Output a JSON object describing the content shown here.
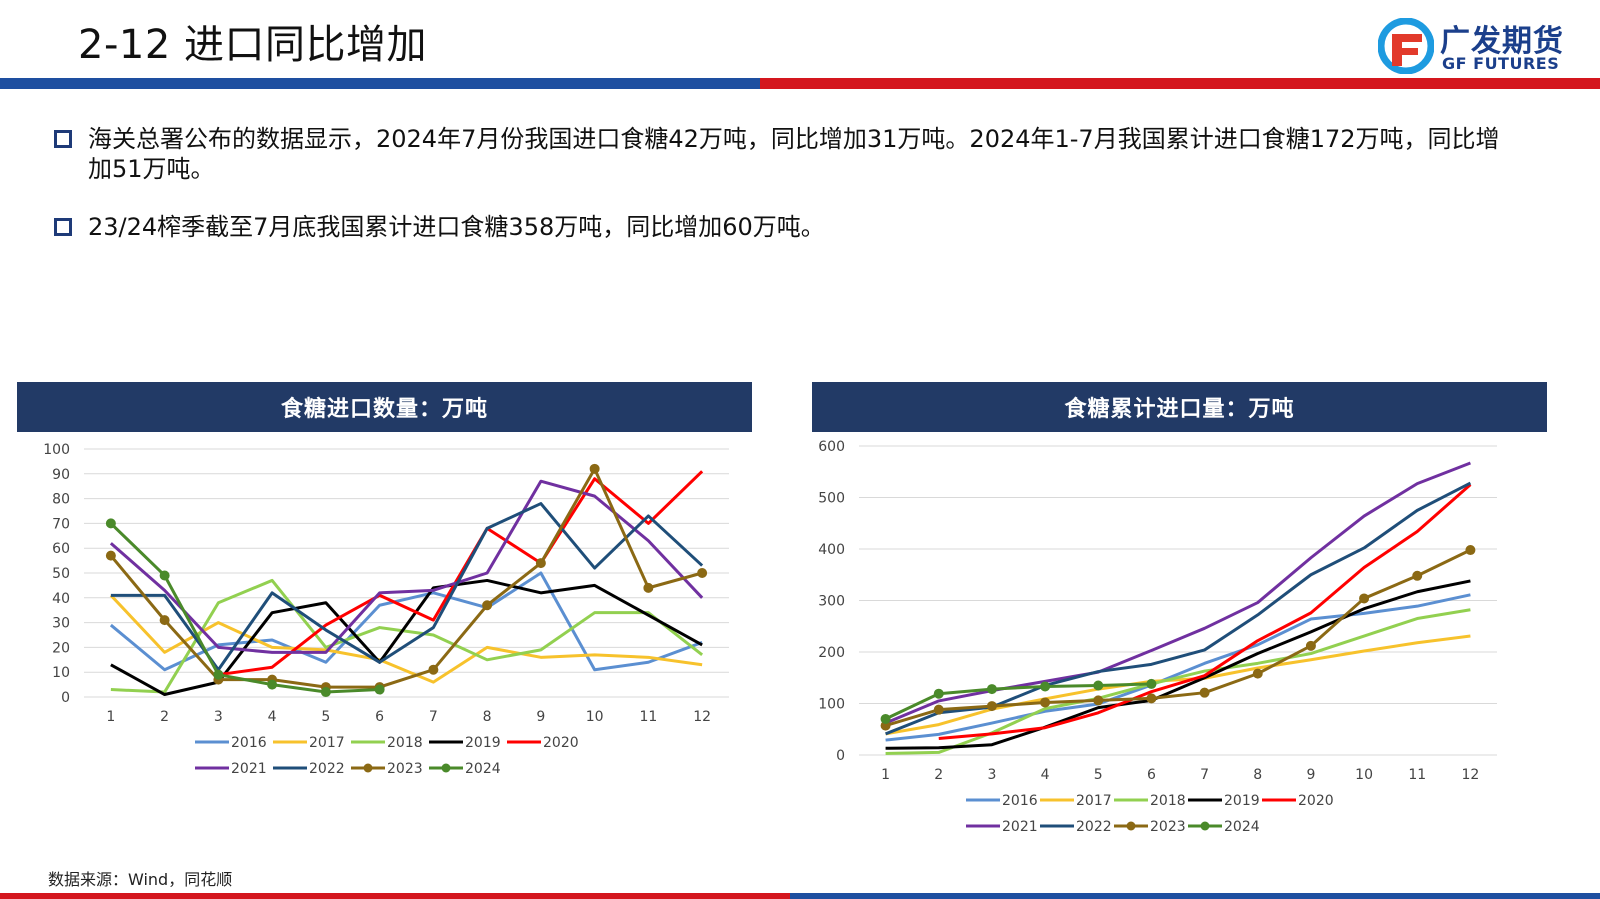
{
  "title": "2-12 进口同比增加",
  "logo": {
    "cn": "广发期货",
    "en": "GF FUTURES"
  },
  "bullets": [
    "海关总署公布的数据显示，2024年7月份我国进口食糖42万吨，同比增加31万吨。2024年1-7月我国累计进口食糖172万吨，同比增加51万吨。",
    "23/24榨季截至7月底我国累计进口食糖358万吨，同比增加60万吨。"
  ],
  "source": "数据来源：Wind，同花顺",
  "colors": {
    "2016": "#5b8fd1",
    "2017": "#f7c22c",
    "2018": "#92d050",
    "2019": "#000000",
    "2020": "#ff0000",
    "2021": "#7030a0",
    "2022": "#1f4e79",
    "2023": "#8b6914",
    "2024": "#4a8a2a"
  },
  "chart_data": [
    {
      "type": "line",
      "title": "食糖进口数量：万吨",
      "categories": [
        "1",
        "2",
        "3",
        "4",
        "5",
        "6",
        "7",
        "8",
        "9",
        "10",
        "11",
        "12"
      ],
      "ylim": [
        0,
        100
      ],
      "yticks": [
        0,
        10,
        20,
        30,
        40,
        50,
        60,
        70,
        80,
        90,
        100
      ],
      "grid": true,
      "legend_position": "bottom",
      "series": [
        {
          "name": "2016",
          "values": [
            29,
            11,
            21,
            23,
            14,
            37,
            42,
            36,
            50,
            11,
            14,
            22
          ],
          "markers": false
        },
        {
          "name": "2017",
          "values": [
            41,
            18,
            30,
            20,
            19,
            15,
            6,
            20,
            16,
            17,
            16,
            13
          ],
          "markers": false
        },
        {
          "name": "2018",
          "values": [
            3,
            2,
            38,
            47,
            20,
            28,
            25,
            15,
            19,
            34,
            34,
            17
          ],
          "markers": false
        },
        {
          "name": "2019",
          "values": [
            13,
            1,
            6,
            34,
            38,
            14,
            44,
            47,
            42,
            45,
            33,
            21
          ],
          "markers": false
        },
        {
          "name": "2020",
          "values": [
            null,
            null,
            9,
            12,
            29,
            41,
            31,
            68,
            54,
            88,
            70,
            91
          ],
          "markers": false
        },
        {
          "name": "2021",
          "values": [
            62,
            43,
            20,
            18,
            18,
            42,
            43,
            50,
            87,
            81,
            63,
            40
          ],
          "markers": false
        },
        {
          "name": "2022",
          "values": [
            41,
            41,
            11,
            42,
            27,
            14,
            28,
            68,
            78,
            52,
            73,
            53
          ],
          "markers": false
        },
        {
          "name": "2023",
          "values": [
            57,
            31,
            7,
            7,
            4,
            4,
            11,
            37,
            54,
            92,
            44,
            50
          ],
          "markers": true
        },
        {
          "name": "2024",
          "values": [
            70,
            49,
            9,
            5,
            2,
            3,
            null,
            null,
            null,
            null,
            null,
            null
          ],
          "markers": true
        }
      ]
    },
    {
      "type": "line",
      "title": "食糖累计进口量：万吨",
      "categories": [
        "1",
        "2",
        "3",
        "4",
        "5",
        "6",
        "7",
        "8",
        "9",
        "10",
        "11",
        "12"
      ],
      "ylim": [
        0,
        600
      ],
      "yticks": [
        0,
        100,
        200,
        300,
        400,
        500,
        600
      ],
      "grid": true,
      "legend_position": "bottom",
      "series": [
        {
          "name": "2016",
          "values": [
            29,
            40,
            62,
            85,
            99,
            136,
            178,
            214,
            264,
            275,
            289,
            311
          ],
          "markers": false
        },
        {
          "name": "2017",
          "values": [
            41,
            59,
            89,
            109,
            128,
            143,
            149,
            169,
            185,
            202,
            218,
            231
          ],
          "markers": false
        },
        {
          "name": "2018",
          "values": [
            3,
            5,
            43,
            90,
            110,
            138,
            163,
            178,
            197,
            231,
            265,
            282
          ],
          "markers": false
        },
        {
          "name": "2019",
          "values": [
            13,
            14,
            20,
            54,
            92,
            106,
            150,
            197,
            239,
            284,
            317,
            338
          ],
          "markers": false
        },
        {
          "name": "2020",
          "values": [
            null,
            32,
            41,
            53,
            82,
            123,
            154,
            222,
            276,
            364,
            434,
            525
          ],
          "markers": false
        },
        {
          "name": "2021",
          "values": [
            62,
            105,
            125,
            143,
            161,
            203,
            246,
            296,
            383,
            464,
            527,
            567
          ],
          "markers": false
        },
        {
          "name": "2022",
          "values": [
            41,
            82,
            93,
            135,
            162,
            176,
            204,
            272,
            350,
            402,
            475,
            528
          ],
          "markers": false
        },
        {
          "name": "2023",
          "values": [
            57,
            88,
            95,
            102,
            106,
            110,
            121,
            158,
            212,
            304,
            348,
            398
          ],
          "markers": true
        },
        {
          "name": "2024",
          "values": [
            70,
            119,
            128,
            133,
            135,
            138,
            null,
            null,
            null,
            null,
            null,
            null
          ],
          "markers": true
        }
      ]
    }
  ]
}
